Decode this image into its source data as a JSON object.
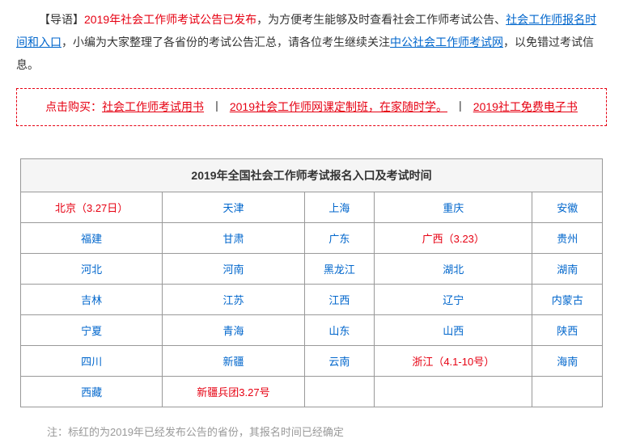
{
  "intro": {
    "prefix": "【导语】",
    "text1": "2019年社会工作师考试公告已发布",
    "text2": "，为方便考生能够及时查看社会工作师考试公告、",
    "link1": "社会工作师报名时间和入口",
    "text3": "，小编为大家整理了各省份的考试公告汇总，请各位考生继续关注",
    "link2": "中公社会工作师考试网",
    "text4": "，以免错过考试信息。"
  },
  "promo": {
    "prefix": "点击购买：",
    "item1": "社会工作师考试用书",
    "item2": "2019社会工作师网课定制班，在家随时学。",
    "item3": "2019社工免费电子书",
    "sep": " 丨 "
  },
  "table": {
    "title": "2019年全国社会工作师考试报名入口及考试时间",
    "rows": [
      [
        {
          "text": "北京（3.27日）",
          "color": "red"
        },
        {
          "text": "天津",
          "color": "blue"
        },
        {
          "text": "上海",
          "color": "blue"
        },
        {
          "text": "重庆",
          "color": "blue"
        },
        {
          "text": "安徽",
          "color": "blue"
        }
      ],
      [
        {
          "text": "福建",
          "color": "blue"
        },
        {
          "text": "甘肃",
          "color": "blue"
        },
        {
          "text": "广东",
          "color": "blue"
        },
        {
          "text": "广西（3.23）",
          "color": "red"
        },
        {
          "text": "贵州",
          "color": "blue"
        }
      ],
      [
        {
          "text": "河北",
          "color": "blue"
        },
        {
          "text": "河南",
          "color": "blue"
        },
        {
          "text": "黑龙江",
          "color": "blue"
        },
        {
          "text": "湖北",
          "color": "blue"
        },
        {
          "text": "湖南",
          "color": "blue"
        }
      ],
      [
        {
          "text": "吉林",
          "color": "blue"
        },
        {
          "text": "江苏",
          "color": "blue"
        },
        {
          "text": "江西",
          "color": "blue"
        },
        {
          "text": "辽宁",
          "color": "blue"
        },
        {
          "text": "内蒙古",
          "color": "blue"
        }
      ],
      [
        {
          "text": "宁夏",
          "color": "blue"
        },
        {
          "text": "青海",
          "color": "blue"
        },
        {
          "text": "山东",
          "color": "blue"
        },
        {
          "text": "山西",
          "color": "blue"
        },
        {
          "text": "陕西",
          "color": "blue"
        }
      ],
      [
        {
          "text": "四川",
          "color": "blue"
        },
        {
          "text": "新疆",
          "color": "blue"
        },
        {
          "text": "云南",
          "color": "blue"
        },
        {
          "text": "浙江（4.1-10号）",
          "color": "red"
        },
        {
          "text": "海南",
          "color": "blue"
        }
      ],
      [
        {
          "text": "西藏",
          "color": "blue"
        },
        {
          "text": "新疆兵团3.27号",
          "color": "red"
        },
        {
          "text": "",
          "color": "empty"
        },
        {
          "text": "",
          "color": "empty"
        },
        {
          "text": "",
          "color": "empty"
        }
      ]
    ]
  },
  "note": "注：标红的为2019年已经发布公告的省份，其报名时间已经确定"
}
